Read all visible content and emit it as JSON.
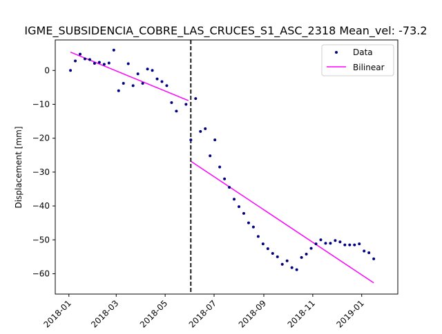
{
  "chart_data": {
    "type": "scatter",
    "title": "IGME_SUBSIDENCIA_COBRE_LAS_CRUCES_S1_ASC_2318    Mean_vel: -73.2",
    "xlabel": "",
    "ylabel": "Displacement [mm]",
    "xlim": [
      "2017-12-15",
      "2019-02-15"
    ],
    "ylim": [
      -66,
      9
    ],
    "x_ticks": [
      "2018-01",
      "2018-03",
      "2018-05",
      "2018-07",
      "2018-09",
      "2018-11",
      "2019-01"
    ],
    "y_ticks": [
      0,
      -10,
      -20,
      -30,
      -40,
      -50,
      -60
    ],
    "grid": false,
    "legend_position": "top-right",
    "colors": {
      "data": "#000080",
      "bilinear": "#ff00ff",
      "breakpoint": "#000000"
    },
    "series": [
      {
        "name": "Data",
        "kind": "points",
        "points": [
          [
            "2018-01-03",
            0
          ],
          [
            "2018-01-09",
            2.8
          ],
          [
            "2018-01-15",
            4.8
          ],
          [
            "2018-01-21",
            3.4
          ],
          [
            "2018-01-27",
            3.2
          ],
          [
            "2018-02-02",
            2.1
          ],
          [
            "2018-02-08",
            2.4
          ],
          [
            "2018-02-14",
            1.8
          ],
          [
            "2018-02-20",
            2.2
          ],
          [
            "2018-02-26",
            6
          ],
          [
            "2018-03-04",
            -6
          ],
          [
            "2018-03-10",
            -3.8
          ],
          [
            "2018-03-16",
            2
          ],
          [
            "2018-03-22",
            -4.5
          ],
          [
            "2018-03-28",
            -1
          ],
          [
            "2018-04-03",
            -3.8
          ],
          [
            "2018-04-09",
            0.4
          ],
          [
            "2018-04-15",
            0
          ],
          [
            "2018-04-21",
            -2.5
          ],
          [
            "2018-04-27",
            -3.3
          ],
          [
            "2018-05-03",
            -4.5
          ],
          [
            "2018-05-09",
            -9.5
          ],
          [
            "2018-05-15",
            -12
          ],
          [
            "2018-05-27",
            -10
          ],
          [
            "2018-06-02",
            -20.5
          ],
          [
            "2018-06-08",
            -8.3
          ],
          [
            "2018-06-14",
            -18
          ],
          [
            "2018-06-20",
            -17.2
          ],
          [
            "2018-06-26",
            -25.2
          ],
          [
            "2018-07-02",
            -20.5
          ],
          [
            "2018-07-08",
            -28.5
          ],
          [
            "2018-07-14",
            -32
          ],
          [
            "2018-07-20",
            -34.5
          ],
          [
            "2018-07-26",
            -38
          ],
          [
            "2018-08-01",
            -40.2
          ],
          [
            "2018-08-07",
            -42.2
          ],
          [
            "2018-08-13",
            -45
          ],
          [
            "2018-08-19",
            -46.2
          ],
          [
            "2018-08-25",
            -49
          ],
          [
            "2018-08-31",
            -51.2
          ],
          [
            "2018-09-06",
            -52.6
          ],
          [
            "2018-09-12",
            -54
          ],
          [
            "2018-09-18",
            -55
          ],
          [
            "2018-09-24",
            -57.2
          ],
          [
            "2018-09-30",
            -56.2
          ],
          [
            "2018-10-06",
            -58.2
          ],
          [
            "2018-10-12",
            -58.8
          ],
          [
            "2018-10-18",
            -55.2
          ],
          [
            "2018-10-24",
            -54.2
          ],
          [
            "2018-10-30",
            -52.5
          ],
          [
            "2018-11-05",
            -51.2
          ],
          [
            "2018-11-11",
            -50
          ],
          [
            "2018-11-17",
            -51
          ],
          [
            "2018-11-23",
            -51
          ],
          [
            "2018-11-29",
            -50.2
          ],
          [
            "2018-12-05",
            -50.6
          ],
          [
            "2018-12-11",
            -51.5
          ],
          [
            "2018-12-17",
            -51.5
          ],
          [
            "2018-12-23",
            -51.5
          ],
          [
            "2018-12-29",
            -51.2
          ],
          [
            "2019-01-04",
            -53.3
          ],
          [
            "2019-01-10",
            -53.8
          ],
          [
            "2019-01-16",
            -55.6
          ]
        ]
      },
      {
        "name": "Bilinear",
        "kind": "line",
        "segments": [
          [
            [
              "2018-01-03",
              5.4
            ],
            [
              "2018-05-30",
              -8.9
            ]
          ],
          [
            [
              "2018-06-02",
              -26.8
            ],
            [
              "2019-01-16",
              -62.7
            ]
          ]
        ]
      }
    ],
    "breakpoint": "2018-06-02"
  }
}
